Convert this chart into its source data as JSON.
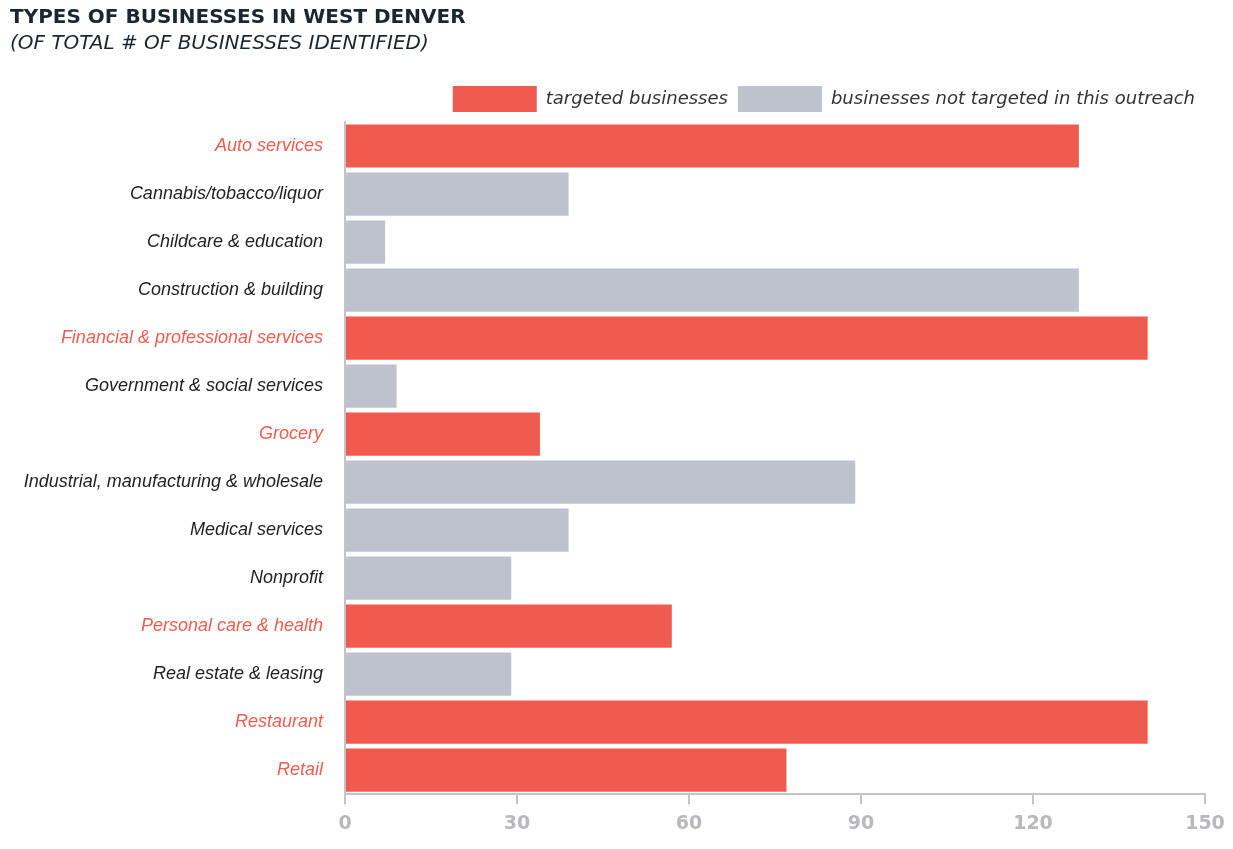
{
  "chart_data": {
    "type": "bar",
    "orientation": "horizontal",
    "title": "TYPES OF BUSINESSES IN WEST DENVER",
    "subtitle": "(OF TOTAL # OF BUSINESSES IDENTIFIED)",
    "categories": [
      "Auto services",
      "Cannabis/tobacco/liquor",
      "Childcare & education",
      "Construction & building",
      "Financial & professional services",
      "Government & social services",
      "Grocery",
      "Industrial, manufacturing & wholesale",
      "Medical services",
      "Nonprofit",
      "Personal care & health",
      "Real estate & leasing",
      "Restaurant",
      "Retail"
    ],
    "series": [
      {
        "name": "targeted businesses",
        "color": "#ef5b4f",
        "values": [
          128,
          null,
          null,
          null,
          140,
          null,
          34,
          null,
          null,
          null,
          57,
          null,
          140,
          77
        ]
      },
      {
        "name": "businesses not targeted in this outreach",
        "color": "#bec2cc",
        "values": [
          null,
          39,
          7,
          128,
          null,
          9,
          null,
          89,
          39,
          29,
          null,
          29,
          null,
          null
        ]
      }
    ],
    "xlim": [
      0,
      150
    ],
    "xticks": [
      0,
      30,
      60,
      90,
      120,
      150
    ],
    "grid": false,
    "legend": "top right"
  }
}
